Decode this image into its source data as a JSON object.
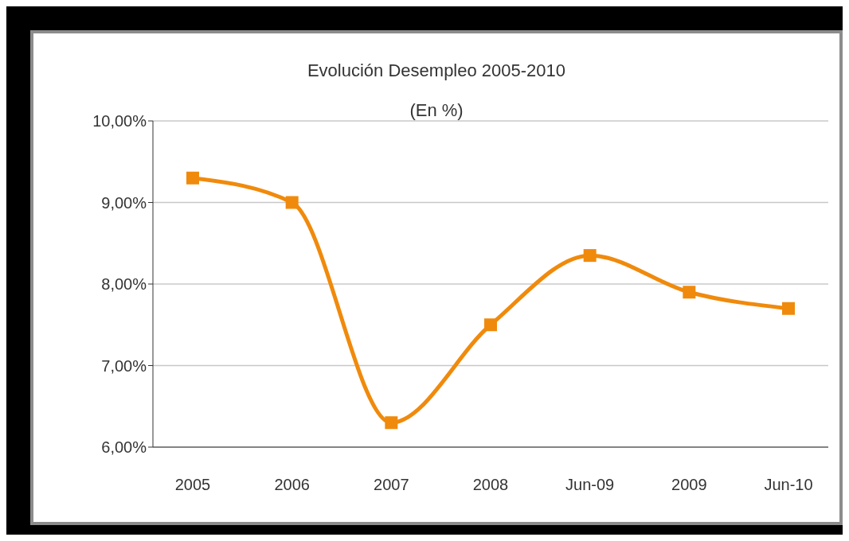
{
  "chart_data": {
    "type": "line",
    "title": "Evolución Desempleo 2005-2010",
    "subtitle": "(En %)",
    "categories": [
      "2005",
      "2006",
      "2007",
      "2008",
      "Jun-09",
      "2009",
      "Jun-10"
    ],
    "series": [
      {
        "color": "#f08a0c",
        "values": [
          9.3,
          9.0,
          6.3,
          7.5,
          8.35,
          7.9,
          7.7
        ]
      }
    ],
    "ylim": [
      6,
      10
    ],
    "yticks": [
      {
        "value": 6,
        "label": "6,00%"
      },
      {
        "value": 7,
        "label": "7,00%"
      },
      {
        "value": 8,
        "label": "8,00%"
      },
      {
        "value": 9,
        "label": "9,00%"
      },
      {
        "value": 10,
        "label": "10,00%"
      }
    ],
    "grid": "y",
    "legend": false,
    "marker": "square",
    "line_style": "solid"
  }
}
